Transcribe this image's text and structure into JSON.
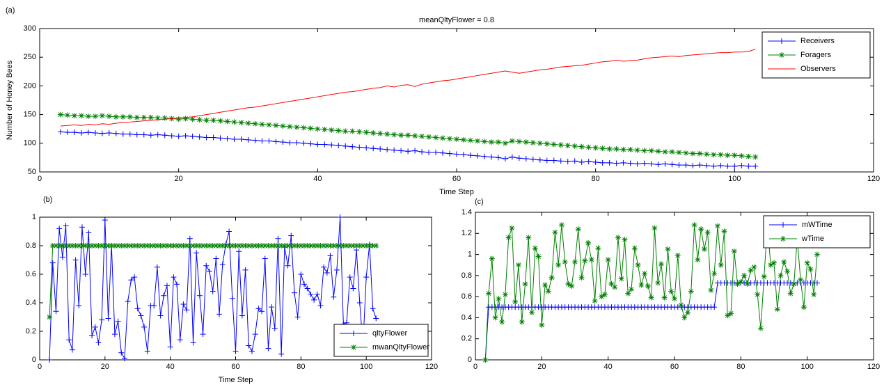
{
  "chart_data": [
    {
      "type": "line",
      "panel_label": "(a)",
      "title": "meanQltyFlower = 0.8",
      "x_label": "Time Step",
      "y_label": "Number of Honey Bees",
      "x": [
        3,
        4,
        5,
        6,
        7,
        8,
        9,
        10,
        11,
        12,
        13,
        14,
        15,
        16,
        17,
        18,
        19,
        20,
        21,
        22,
        23,
        24,
        25,
        26,
        27,
        28,
        29,
        30,
        31,
        32,
        33,
        34,
        35,
        36,
        37,
        38,
        39,
        40,
        41,
        42,
        43,
        44,
        45,
        46,
        47,
        48,
        49,
        50,
        51,
        52,
        53,
        54,
        55,
        56,
        57,
        58,
        59,
        60,
        61,
        62,
        63,
        64,
        65,
        66,
        67,
        68,
        69,
        70,
        71,
        72,
        73,
        74,
        75,
        76,
        77,
        78,
        79,
        80,
        81,
        82,
        83,
        84,
        85,
        86,
        87,
        88,
        89,
        90,
        91,
        92,
        93,
        94,
        95,
        96,
        97,
        98,
        99,
        100,
        101,
        102,
        103
      ],
      "series": [
        {
          "name": "Receivers",
          "color": "#0000ff",
          "marker": "+",
          "values": [
            120,
            119,
            119,
            118,
            119,
            118,
            117,
            118,
            117,
            116,
            116,
            115,
            115,
            114,
            115,
            114,
            113,
            112,
            113,
            112,
            111,
            110,
            110,
            109,
            108,
            107,
            107,
            106,
            105,
            104,
            104,
            103,
            102,
            101,
            101,
            100,
            99,
            98,
            98,
            97,
            96,
            95,
            94,
            93,
            92,
            91,
            90,
            89,
            88,
            87,
            86,
            87,
            85,
            84,
            84,
            83,
            82,
            81,
            80,
            79,
            78,
            77,
            76,
            75,
            73,
            76,
            74,
            73,
            72,
            71,
            70,
            70,
            69,
            68,
            69,
            67,
            68,
            67,
            66,
            66,
            65,
            66,
            65,
            64,
            65,
            64,
            63,
            64,
            63,
            62,
            62,
            61,
            62,
            61,
            60,
            61,
            60,
            60,
            61,
            60,
            60
          ]
        },
        {
          "name": "Foragers",
          "color": "#008000",
          "marker": "*",
          "values": [
            150,
            149,
            148,
            148,
            147,
            147,
            148,
            147,
            146,
            146,
            146,
            145,
            145,
            145,
            144,
            144,
            143,
            142,
            143,
            142,
            141,
            140,
            140,
            139,
            138,
            137,
            136,
            135,
            134,
            133,
            132,
            131,
            130,
            129,
            128,
            127,
            126,
            125,
            124,
            123,
            122,
            121,
            121,
            120,
            119,
            118,
            117,
            116,
            115,
            114,
            114,
            113,
            112,
            111,
            110,
            109,
            108,
            107,
            106,
            105,
            104,
            103,
            102,
            102,
            100,
            104,
            103,
            102,
            101,
            100,
            99,
            98,
            97,
            96,
            95,
            94,
            93,
            92,
            91,
            90,
            90,
            89,
            89,
            88,
            87,
            87,
            86,
            85,
            85,
            84,
            83,
            82,
            82,
            81,
            80,
            80,
            79,
            79,
            78,
            77,
            76
          ]
        },
        {
          "name": "Observers",
          "color": "#ff0000",
          "values": [
            130,
            131,
            132,
            131,
            133,
            132,
            134,
            133,
            135,
            136,
            137,
            138,
            139,
            140,
            141,
            142,
            143,
            144,
            145,
            146,
            148,
            150,
            152,
            154,
            156,
            158,
            160,
            162,
            163,
            165,
            167,
            169,
            171,
            173,
            175,
            177,
            179,
            181,
            183,
            185,
            187,
            189,
            190,
            192,
            194,
            196,
            197,
            200,
            198,
            201,
            202,
            199,
            203,
            205,
            207,
            209,
            210,
            212,
            214,
            216,
            218,
            220,
            222,
            224,
            226,
            224,
            222,
            224,
            226,
            228,
            229,
            231,
            233,
            234,
            235,
            236,
            238,
            240,
            242,
            243,
            245,
            243,
            244,
            245,
            247,
            249,
            250,
            251,
            252,
            251,
            253,
            254,
            255,
            256,
            257,
            258,
            258,
            259,
            259,
            260,
            264
          ]
        }
      ],
      "xlim": [
        0,
        120
      ],
      "xticks": [
        0,
        20,
        40,
        60,
        80,
        100,
        120
      ],
      "ylim": [
        50,
        300
      ],
      "yticks": [
        50,
        100,
        150,
        200,
        250,
        300
      ],
      "legend": "upper right",
      "grid": false
    },
    {
      "type": "line",
      "panel_label": "(b)",
      "x_label": "Time Step",
      "x": [
        3,
        4,
        5,
        6,
        7,
        8,
        9,
        10,
        11,
        12,
        13,
        14,
        15,
        16,
        17,
        18,
        19,
        20,
        21,
        22,
        23,
        24,
        25,
        26,
        27,
        28,
        29,
        30,
        31,
        32,
        33,
        34,
        35,
        36,
        37,
        38,
        39,
        40,
        41,
        42,
        43,
        44,
        45,
        46,
        47,
        48,
        49,
        50,
        51,
        52,
        53,
        54,
        55,
        56,
        57,
        58,
        59,
        60,
        61,
        62,
        63,
        64,
        65,
        66,
        67,
        68,
        69,
        70,
        71,
        72,
        73,
        74,
        75,
        76,
        77,
        78,
        79,
        80,
        81,
        82,
        83,
        84,
        85,
        86,
        87,
        88,
        89,
        90,
        91,
        92,
        93,
        94,
        95,
        96,
        97,
        98,
        99,
        100,
        101,
        102,
        103
      ],
      "series": [
        {
          "name": "qltyFlower",
          "color": "#0000ff",
          "marker": "+",
          "values": [
            0,
            0.68,
            0.34,
            0.92,
            0.72,
            0.94,
            0.14,
            0.07,
            0.7,
            0.38,
            0.93,
            0.6,
            0.89,
            0.17,
            0.23,
            0.12,
            0.28,
            0.98,
            0.29,
            0.8,
            0.18,
            0.27,
            0.05,
            0.01,
            0.41,
            0.56,
            0.58,
            0.36,
            0.31,
            0.23,
            0.06,
            0.38,
            0.38,
            0.65,
            0.31,
            0.45,
            0.52,
            0.09,
            0.58,
            0.53,
            0.14,
            0.39,
            0.35,
            0.85,
            0.12,
            0.75,
            0.45,
            0.18,
            0.66,
            0.62,
            0.48,
            0.71,
            0.32,
            0.67,
            0.81,
            0.9,
            0.43,
            0.06,
            0.76,
            0.31,
            0.63,
            0.1,
            0.06,
            0.18,
            0.36,
            0.34,
            0.71,
            0.08,
            0.37,
            0.22,
            0.85,
            0.04,
            0.79,
            0.66,
            0.87,
            0.47,
            0.3,
            0.6,
            0.53,
            0.5,
            0.46,
            0.42,
            0.46,
            0.38,
            0.65,
            0.61,
            0.73,
            0.44,
            0.63,
            1,
            0.25,
            0.26,
            0.58,
            0.5,
            0.77,
            0.4,
            0.1,
            0.58,
            0.81,
            0.36,
            0.29
          ]
        },
        {
          "name": "mwanQltyFlower",
          "color": "#008000",
          "marker": "*",
          "values": [
            0.3,
            0.8,
            0.8,
            0.8,
            0.8,
            0.8,
            0.8,
            0.8,
            0.8,
            0.8,
            0.8,
            0.8,
            0.8,
            0.8,
            0.8,
            0.8,
            0.8,
            0.8,
            0.8,
            0.8,
            0.8,
            0.8,
            0.8,
            0.8,
            0.8,
            0.8,
            0.8,
            0.8,
            0.8,
            0.8,
            0.8,
            0.8,
            0.8,
            0.8,
            0.8,
            0.8,
            0.8,
            0.8,
            0.8,
            0.8,
            0.8,
            0.8,
            0.8,
            0.8,
            0.8,
            0.8,
            0.8,
            0.8,
            0.8,
            0.8,
            0.8,
            0.8,
            0.8,
            0.8,
            0.8,
            0.8,
            0.8,
            0.8,
            0.8,
            0.8,
            0.8,
            0.8,
            0.8,
            0.8,
            0.8,
            0.8,
            0.8,
            0.8,
            0.8,
            0.8,
            0.8,
            0.8,
            0.8,
            0.8,
            0.8,
            0.8,
            0.8,
            0.8,
            0.8,
            0.8,
            0.8,
            0.8,
            0.8,
            0.8,
            0.8,
            0.8,
            0.8,
            0.8,
            0.8,
            0.8,
            0.8,
            0.8,
            0.8,
            0.8,
            0.8,
            0.8,
            0.8,
            0.8,
            0.8,
            0.8,
            0.8
          ]
        }
      ],
      "xlim": [
        0,
        120
      ],
      "xticks": [
        0,
        20,
        40,
        60,
        80,
        100,
        120
      ],
      "ylim": [
        0,
        1
      ],
      "yticks": [
        0,
        0.2,
        0.4,
        0.6,
        0.8,
        1
      ],
      "legend": "lower right",
      "grid": false
    },
    {
      "type": "line",
      "panel_label": "(c)",
      "x": [
        3,
        4,
        5,
        6,
        7,
        8,
        9,
        10,
        11,
        12,
        13,
        14,
        15,
        16,
        17,
        18,
        19,
        20,
        21,
        22,
        23,
        24,
        25,
        26,
        27,
        28,
        29,
        30,
        31,
        32,
        33,
        34,
        35,
        36,
        37,
        38,
        39,
        40,
        41,
        42,
        43,
        44,
        45,
        46,
        47,
        48,
        49,
        50,
        51,
        52,
        53,
        54,
        55,
        56,
        57,
        58,
        59,
        60,
        61,
        62,
        63,
        64,
        65,
        66,
        67,
        68,
        69,
        70,
        71,
        72,
        73,
        74,
        75,
        76,
        77,
        78,
        79,
        80,
        81,
        82,
        83,
        84,
        85,
        86,
        87,
        88,
        89,
        90,
        91,
        92,
        93,
        94,
        95,
        96,
        97,
        98,
        99,
        100,
        101,
        102,
        103
      ],
      "series": [
        {
          "name": "mWTime",
          "color": "#0000ff",
          "marker": "+",
          "values": [
            0,
            0.5,
            0.5,
            0.5,
            0.5,
            0.5,
            0.5,
            0.5,
            0.5,
            0.5,
            0.5,
            0.5,
            0.5,
            0.5,
            0.5,
            0.5,
            0.5,
            0.5,
            0.5,
            0.5,
            0.5,
            0.5,
            0.5,
            0.5,
            0.5,
            0.5,
            0.5,
            0.5,
            0.5,
            0.5,
            0.5,
            0.5,
            0.5,
            0.5,
            0.5,
            0.5,
            0.5,
            0.5,
            0.5,
            0.5,
            0.5,
            0.5,
            0.5,
            0.5,
            0.5,
            0.5,
            0.5,
            0.5,
            0.5,
            0.5,
            0.5,
            0.5,
            0.5,
            0.5,
            0.5,
            0.5,
            0.5,
            0.5,
            0.5,
            0.5,
            0.5,
            0.5,
            0.5,
            0.5,
            0.5,
            0.5,
            0.5,
            0.5,
            0.5,
            0.5,
            0.73,
            0.73,
            0.73,
            0.73,
            0.73,
            0.73,
            0.73,
            0.73,
            0.73,
            0.73,
            0.73,
            0.73,
            0.73,
            0.73,
            0.73,
            0.73,
            0.73,
            0.73,
            0.73,
            0.73,
            0.73,
            0.73,
            0.73,
            0.73,
            0.73,
            0.73,
            0.73,
            0.73,
            0.73,
            0.73,
            0.73
          ]
        },
        {
          "name": "wTime",
          "color": "#008000",
          "marker": "*",
          "values": [
            0,
            0.63,
            0.96,
            0.4,
            0.58,
            0.36,
            0.62,
            1.16,
            1.25,
            0.55,
            0.9,
            0.36,
            0.72,
            1.16,
            0.45,
            1.06,
            0.98,
            0.33,
            0.71,
            0.65,
            0.78,
            1.21,
            0.9,
            1.28,
            0.93,
            0.72,
            0.7,
            0.93,
            1.24,
            0.78,
            0.94,
            1.11,
            0.95,
            0.56,
            1.06,
            0.6,
            0.62,
            0.95,
            0.72,
            0.69,
            1.16,
            0.77,
            1.14,
            0.63,
            0.67,
            1.06,
            0.9,
            0.71,
            0.82,
            0.7,
            0.59,
            1.25,
            0.73,
            0.91,
            0.59,
            1.05,
            0.65,
            0.58,
            0.99,
            0.52,
            0.4,
            0.45,
            0.65,
            1.28,
            0.95,
            1.24,
            1.05,
            1.21,
            0.66,
            0.82,
            1.27,
            0.9,
            1.22,
            0.42,
            0.44,
            1.03,
            0.72,
            0.74,
            0.8,
            0.72,
            0.85,
            0.88,
            0.62,
            0.3,
            0.79,
            1.28,
            0.9,
            0.92,
            0.48,
            0.8,
            0.93,
            0.84,
            0.63,
            0.72,
            1.15,
            0.76,
            0.5,
            0.92,
            0.86,
            0.62,
            1
          ]
        }
      ],
      "xlim": [
        0,
        120
      ],
      "xticks": [
        0,
        20,
        40,
        60,
        80,
        100,
        120
      ],
      "ylim": [
        0,
        1.4
      ],
      "yticks": [
        0,
        0.2,
        0.4,
        0.6,
        0.8,
        1,
        1.2,
        1.4
      ],
      "legend": "upper right",
      "grid": false
    }
  ]
}
